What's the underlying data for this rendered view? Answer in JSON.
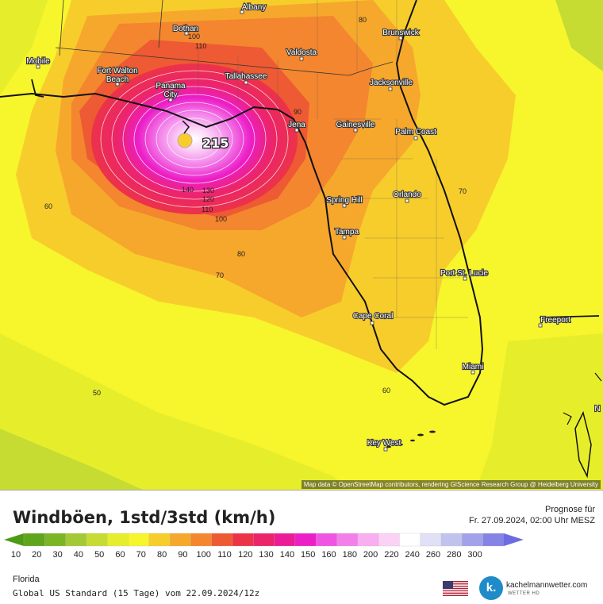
{
  "map": {
    "attribution": "Map data © OpenStreetMap contributors, rendering GIScience Research Group @ Heidelberg University",
    "center_value": "215",
    "cities": [
      {
        "name": "Albany"
      },
      {
        "name": "Dothan"
      },
      {
        "name": "Brunswick"
      },
      {
        "name": "Mobile"
      },
      {
        "name": "Fort Walton"
      },
      {
        "name": "Beach"
      },
      {
        "name": "Valdosta"
      },
      {
        "name": "Panama"
      },
      {
        "name": "City"
      },
      {
        "name": "Tallahassee"
      },
      {
        "name": "Jacksonville"
      },
      {
        "name": "Jena"
      },
      {
        "name": "Gainesville"
      },
      {
        "name": "Palm Coast"
      },
      {
        "name": "Spring Hill"
      },
      {
        "name": "Orlando"
      },
      {
        "name": "Tampa"
      },
      {
        "name": "Port St. Lucie"
      },
      {
        "name": "Cape Coral"
      },
      {
        "name": "Freeport"
      },
      {
        "name": "Miami"
      },
      {
        "name": "Key West"
      },
      {
        "name": "N"
      }
    ],
    "contour_labels": [
      "80",
      "100",
      "110",
      "90",
      "140",
      "130",
      "120",
      "110",
      "100",
      "80",
      "70",
      "60",
      "70",
      "50",
      "60"
    ]
  },
  "footer": {
    "title": "Windböen, 1std/3std (km/h)",
    "forecast_label": "Prognose für",
    "forecast_date": "Fr. 27.09.2024, 02:00 Uhr MESZ",
    "region": "Florida",
    "model": "Global US Standard (15 Tage) vom  22.09.2024/12z",
    "logo_letter": "k.",
    "logo_text": "kachelmannwetter.com",
    "logo_sub": "WETTER HD"
  },
  "scale": {
    "ticks": [
      "10",
      "20",
      "30",
      "40",
      "50",
      "60",
      "70",
      "80",
      "90",
      "100",
      "110",
      "120",
      "130",
      "140",
      "150",
      "160",
      "180",
      "200",
      "220",
      "240",
      "260",
      "280",
      "300"
    ],
    "colors": [
      "#5ea51c",
      "#7ab526",
      "#a4c936",
      "#c7dc32",
      "#e6ee2c",
      "#f7f52c",
      "#f7cd2c",
      "#f6a82c",
      "#f3862f",
      "#ee5a33",
      "#ec3348",
      "#ec246a",
      "#ec1c96",
      "#ec1ec8",
      "#ef55e2",
      "#f380ea",
      "#f8aef0",
      "#fbd2f6",
      "#ffffff",
      "#e0e0f6",
      "#c2c2ee",
      "#a2a2ea",
      "#8484e6"
    ]
  }
}
